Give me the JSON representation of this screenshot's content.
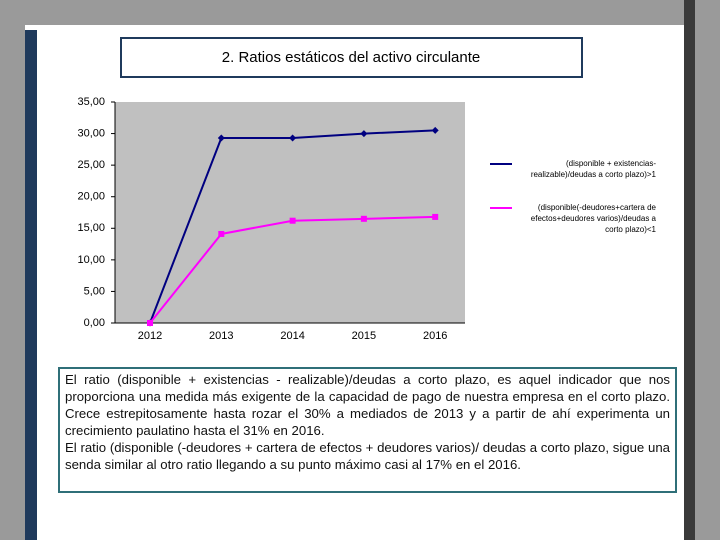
{
  "chart_data": {
    "type": "line",
    "title": "2. Ratios estáticos del activo circulante",
    "categories": [
      "2012",
      "2013",
      "2014",
      "2015",
      "2016"
    ],
    "series": [
      {
        "name": "(disponible + existencias-realizable)/deudas a corto plazo)>1",
        "color": "#000080",
        "marker": "diamond",
        "values": [
          0,
          29.3,
          29.3,
          30.0,
          30.5
        ]
      },
      {
        "name": "(disponible(-deudores+cartera de efectos+deudores varios)/deudas a corto plazo)<1",
        "color": "#ff00ff",
        "marker": "square",
        "values": [
          0,
          14.1,
          16.2,
          16.5,
          16.8
        ]
      }
    ],
    "ylim": [
      0,
      35
    ],
    "yticks": [
      {
        "value": 0,
        "label": "0,00"
      },
      {
        "value": 5,
        "label": "5,00"
      },
      {
        "value": 10,
        "label": "10,00"
      },
      {
        "value": 15,
        "label": "15,00"
      },
      {
        "value": 20,
        "label": "20,00"
      },
      {
        "value": 25,
        "label": "25,00"
      },
      {
        "value": 30,
        "label": "30,00"
      },
      {
        "value": 35,
        "label": "35,00"
      }
    ],
    "legend": "right"
  },
  "description": [
    "El ratio (disponible + existencias - realizable)/deudas a corto plazo, es aquel indicador que nos proporciona una medida más exigente de la capacidad de pago de nuestra empresa en el corto plazo. Crece estrepitosamente hasta rozar el 30% a mediados de 2013 y a partir de ahí experimenta un crecimiento paulatino hasta el 31% en 2016.",
    "El ratio (disponible (-deudores + cartera de efectos + deudores varios)/ deudas a corto plazo, sigue una senda similar al otro ratio llegando a su punto máximo casi al 17% en el 2016."
  ]
}
